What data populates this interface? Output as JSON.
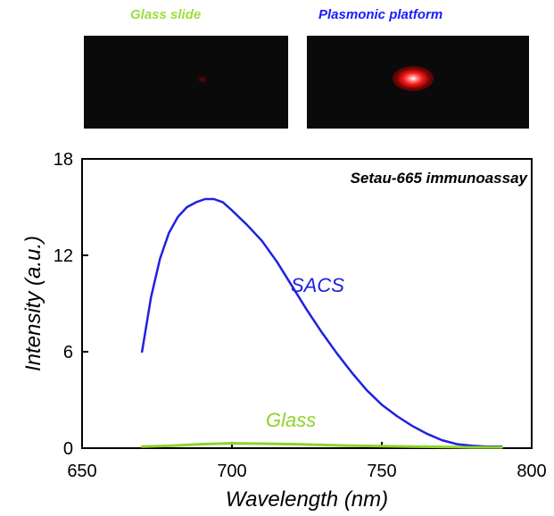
{
  "images": {
    "left": {
      "label": "Glass slide",
      "label_color": "#9fdc3c"
    },
    "right": {
      "label": "Plasmonic platform",
      "label_color": "#1a1aff"
    }
  },
  "chart_data": {
    "type": "line",
    "title": "Setau-665 immunoassay",
    "xlabel": "Wavelength (nm)",
    "ylabel": "Intensity (a.u.)",
    "xlim": [
      650,
      800
    ],
    "ylim": [
      0,
      18
    ],
    "xticks": [
      650,
      700,
      750,
      800
    ],
    "yticks": [
      0,
      6,
      12,
      18
    ],
    "grid": false,
    "series": [
      {
        "name": "SACS",
        "color": "#2020e0",
        "x": [
          670,
          673,
          676,
          679,
          682,
          685,
          688,
          691,
          694,
          697,
          700,
          705,
          710,
          715,
          720,
          725,
          730,
          735,
          740,
          745,
          750,
          755,
          760,
          765,
          770,
          775,
          780,
          785,
          790
        ],
        "y": [
          6.0,
          9.4,
          11.8,
          13.4,
          14.4,
          15.0,
          15.3,
          15.5,
          15.5,
          15.3,
          14.8,
          13.9,
          12.9,
          11.6,
          10.1,
          8.6,
          7.2,
          5.9,
          4.7,
          3.6,
          2.7,
          2.0,
          1.4,
          0.9,
          0.5,
          0.25,
          0.15,
          0.1,
          0.1
        ]
      },
      {
        "name": "Glass",
        "color": "#8fd32a",
        "x": [
          670,
          680,
          690,
          700,
          710,
          720,
          730,
          740,
          750,
          760,
          770,
          780,
          790
        ],
        "y": [
          0.1,
          0.15,
          0.25,
          0.3,
          0.28,
          0.25,
          0.2,
          0.15,
          0.12,
          0.1,
          0.08,
          0.05,
          0.05
        ]
      }
    ]
  }
}
